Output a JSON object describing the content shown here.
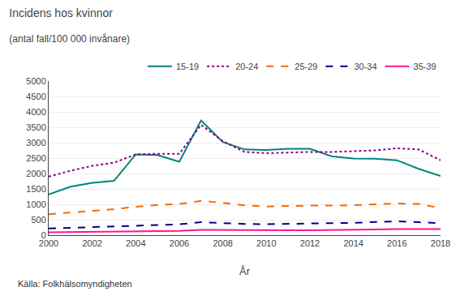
{
  "chart_data": {
    "type": "line",
    "title": "Incidens hos kvinnor",
    "subtitle": "(antal fall/100 000 invånare)",
    "xlabel": "År",
    "x": [
      2000,
      2001,
      2002,
      2003,
      2004,
      2005,
      2006,
      2007,
      2008,
      2009,
      2010,
      2011,
      2012,
      2013,
      2014,
      2015,
      2016,
      2017,
      2018
    ],
    "series": [
      {
        "name": "15-19",
        "color": "#00857a",
        "line_style": "solid",
        "values": [
          1320,
          1570,
          1700,
          1760,
          2620,
          2600,
          2380,
          3720,
          3020,
          2780,
          2760,
          2800,
          2800,
          2560,
          2490,
          2480,
          2430,
          2150,
          1920
        ]
      },
      {
        "name": "20-24",
        "color": "#8B008B",
        "line_style": "dotted",
        "values": [
          1900,
          2090,
          2250,
          2350,
          2620,
          2640,
          2640,
          3580,
          3050,
          2700,
          2660,
          2680,
          2700,
          2700,
          2720,
          2750,
          2820,
          2780,
          2430
        ]
      },
      {
        "name": "25-29",
        "color": "#FF6600",
        "line_style": "dashed",
        "values": [
          680,
          730,
          780,
          840,
          920,
          980,
          1010,
          1110,
          1050,
          970,
          930,
          950,
          960,
          960,
          970,
          1000,
          1030,
          1010,
          880
        ]
      },
      {
        "name": "30-34",
        "color": "#00008B",
        "line_style": "dashed",
        "values": [
          215,
          240,
          265,
          285,
          310,
          330,
          350,
          420,
          390,
          365,
          355,
          370,
          390,
          390,
          400,
          420,
          450,
          420,
          385
        ]
      },
      {
        "name": "35-39",
        "color": "#FF1493",
        "line_style": "solid",
        "values": [
          90,
          100,
          110,
          120,
          130,
          135,
          140,
          170,
          165,
          155,
          150,
          155,
          160,
          165,
          175,
          185,
          200,
          200,
          195
        ]
      }
    ],
    "xlim": [
      2000,
      2018
    ],
    "xticks": [
      2000,
      2002,
      2004,
      2006,
      2008,
      2010,
      2012,
      2014,
      2016,
      2018
    ],
    "ylim": [
      0,
      5000
    ],
    "yticks": [
      0,
      500,
      1000,
      1500,
      2000,
      2500,
      3000,
      3500,
      4000,
      4500,
      5000
    ],
    "grid": true,
    "legend": "top",
    "annotations": [
      "Källa: Folkhälsomyndigheten"
    ]
  }
}
